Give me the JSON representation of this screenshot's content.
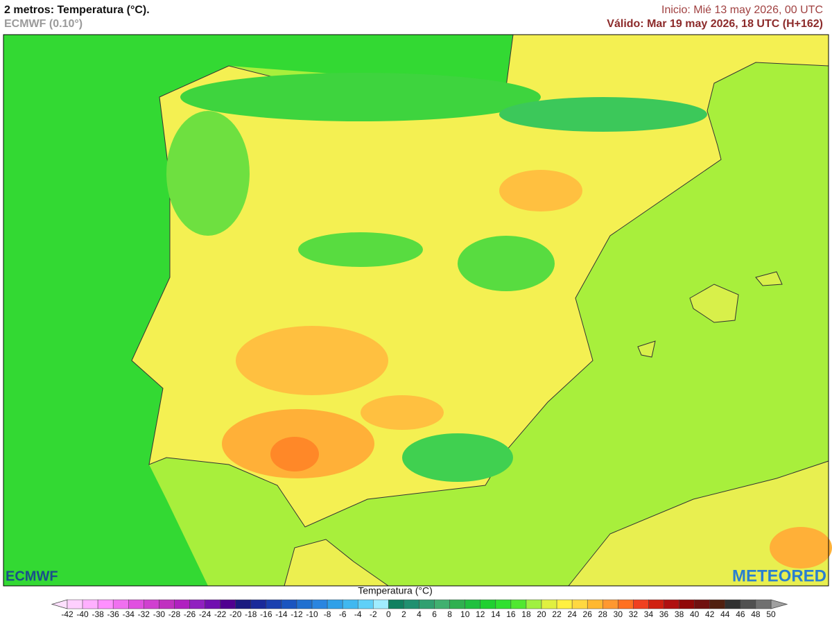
{
  "header": {
    "title": "2 metros: Temperatura (°C).",
    "model": "ECMWF (0.10°)",
    "init": "Inicio: Mié 13 may 2026, 00 UTC",
    "valid": "Válido: Mar 19 may 2026, 18 UTC (H+162)"
  },
  "logos": {
    "left": "ECMWF",
    "right": "METEORED"
  },
  "legend": {
    "title": "Temperatura (°C)",
    "ticks": [
      -42,
      -40,
      -38,
      -36,
      -34,
      -32,
      -30,
      -28,
      -26,
      -24,
      -22,
      -20,
      -18,
      -16,
      -14,
      -12,
      -10,
      -8,
      -6,
      -4,
      -2,
      0,
      2,
      4,
      6,
      8,
      10,
      12,
      14,
      16,
      18,
      20,
      22,
      24,
      26,
      28,
      30,
      32,
      34,
      36,
      38,
      40,
      42,
      44,
      46,
      48,
      50
    ],
    "colors": [
      "#ffd0ff",
      "#ffb0ff",
      "#ff90ff",
      "#f070f0",
      "#e050e0",
      "#d040d0",
      "#c030c0",
      "#b020c0",
      "#9020c0",
      "#7010b0",
      "#500090",
      "#1a1a80",
      "#1a2a9a",
      "#1a40b0",
      "#1a55c0",
      "#2070d0",
      "#2a85e0",
      "#30a0e8",
      "#40b8f0",
      "#60d0f8",
      "#a0ecff",
      "#108060",
      "#209070",
      "#30a070",
      "#40b070",
      "#30b050",
      "#20c040",
      "#20d030",
      "#30e030",
      "#50e830",
      "#a0f040",
      "#e0f040",
      "#fff040",
      "#ffd840",
      "#ffb830",
      "#ff9830",
      "#ff7020",
      "#f04020",
      "#d02010",
      "#b01010",
      "#900808",
      "#701010",
      "#502010",
      "#303030",
      "#505050",
      "#707070"
    ],
    "under_color": "#ffe0ff",
    "over_color": "#a0a0a0"
  }
}
